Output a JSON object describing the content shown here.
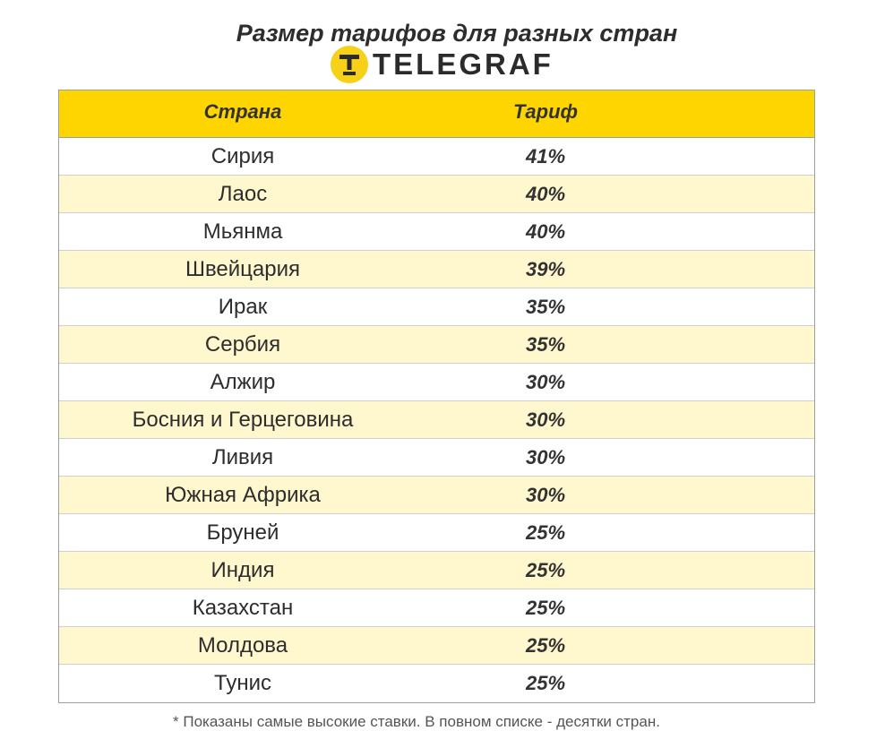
{
  "chart_data": {
    "type": "table",
    "title": "Размер тарифов для разных стран",
    "columns": [
      "Страна",
      "Тариф"
    ],
    "rows": [
      [
        "Сирия",
        "41%"
      ],
      [
        "Лаос",
        "40%"
      ],
      [
        "Мьянма",
        "40%"
      ],
      [
        "Швейцария",
        "39%"
      ],
      [
        "Ирак",
        "35%"
      ],
      [
        "Сербия",
        "35%"
      ],
      [
        "Алжир",
        "30%"
      ],
      [
        "Босния и Герцеговина",
        "30%"
      ],
      [
        "Ливия",
        "30%"
      ],
      [
        "Южная Африка",
        "30%"
      ],
      [
        "Бруней",
        "25%"
      ],
      [
        "Индия",
        "25%"
      ],
      [
        "Казахстан",
        "25%"
      ],
      [
        "Молдова",
        "25%"
      ],
      [
        "Тунис",
        "25%"
      ]
    ],
    "note": "* Показаны самые высокие ставки. В повном списке - десятки стран."
  },
  "logo": {
    "text": "TELEGRAF",
    "icon": "telegraf-t-icon"
  },
  "colors": {
    "header": "#FFD500",
    "row_alt": "#FFF7CE",
    "text": "#2d2d2d",
    "border": "#9e9e9e",
    "logo": "#F7D117"
  }
}
